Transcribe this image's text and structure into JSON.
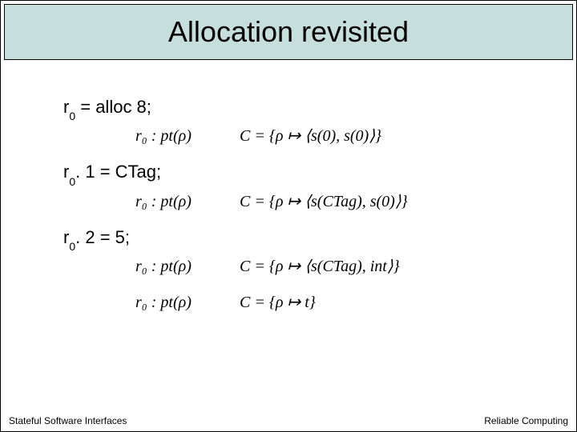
{
  "title": "Allocation revisited",
  "lines": {
    "l1": {
      "var": "r",
      "sub": "0",
      "rest": " = alloc 8;"
    },
    "l2": {
      "var": "r",
      "sub": "0",
      "rest": ". 1 = CTag;"
    },
    "l3": {
      "var": "r",
      "sub": "0",
      "rest": ". 2 = 5;"
    }
  },
  "annotations": {
    "a1": {
      "typing": "r₀ : pt(ρ)",
      "constraint": "C = {ρ ↦ ⟨s(0), s(0)⟩}"
    },
    "a2": {
      "typing": "r₀ : pt(ρ)",
      "constraint": "C = {ρ ↦ ⟨s(CTag), s(0)⟩}"
    },
    "a3": {
      "typing": "r₀ : pt(ρ)",
      "constraint": "C = {ρ ↦ ⟨s(CTag), int⟩}"
    },
    "a4": {
      "typing": "r₀ : pt(ρ)",
      "constraint": "C = {ρ ↦ t}"
    }
  },
  "footer": {
    "left": "Stateful Software Interfaces",
    "right": "Reliable Computing"
  },
  "colors": {
    "title_bg": "#c6dfdd",
    "border": "#000000",
    "text": "#000000",
    "background": "#ffffff"
  },
  "typography": {
    "title_fontsize": 36,
    "code_fontsize": 22,
    "annotation_fontsize": 20,
    "footer_fontsize": 12
  }
}
